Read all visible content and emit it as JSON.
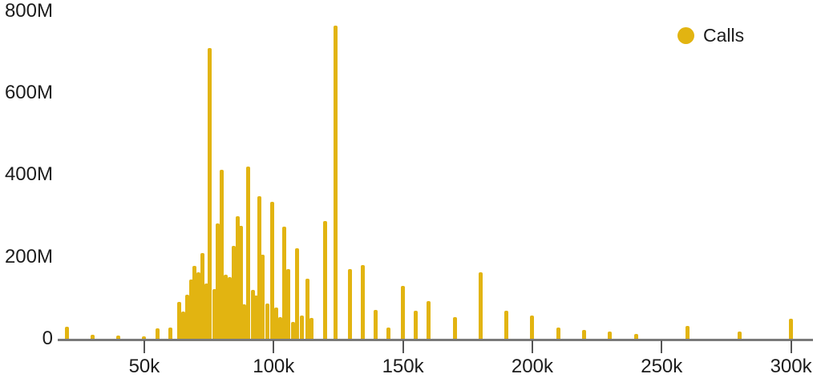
{
  "legend": {
    "items": [
      {
        "label": "Calls",
        "color": "#E2B411"
      }
    ]
  },
  "colors": {
    "bar": "#E2B411",
    "axis_line": "#7a7a7a",
    "tick": "#555555",
    "text": "#1c1c1c",
    "background": "#ffffff"
  },
  "chart_data": {
    "type": "bar",
    "title": "",
    "xlabel": "",
    "ylabel": "",
    "x_units": "k (thousands)",
    "y_units": "M (millions)",
    "grid": false,
    "legend_position": "top-right",
    "xlim": [
      15,
      310
    ],
    "ylim": [
      0,
      800
    ],
    "xticks": [
      {
        "value": 50,
        "label": "50k"
      },
      {
        "value": 100,
        "label": "100k"
      },
      {
        "value": 150,
        "label": "150k"
      },
      {
        "value": 200,
        "label": "200k"
      },
      {
        "value": 250,
        "label": "250k"
      },
      {
        "value": 300,
        "label": "300k"
      }
    ],
    "yticks": [
      {
        "value": 800,
        "label": "800M"
      },
      {
        "value": 600,
        "label": "600M"
      },
      {
        "value": 400,
        "label": "400M"
      },
      {
        "value": 200,
        "label": "200M"
      },
      {
        "value": 0,
        "label": "0"
      }
    ],
    "series": [
      {
        "name": "Calls",
        "color": "#E2B411",
        "points": [
          [
            20,
            30
          ],
          [
            30,
            10
          ],
          [
            40,
            8
          ],
          [
            50,
            5
          ],
          [
            55,
            25
          ],
          [
            60,
            28
          ],
          [
            63.5,
            90
          ],
          [
            65,
            67
          ],
          [
            66.5,
            108
          ],
          [
            68,
            145
          ],
          [
            69.5,
            178
          ],
          [
            71,
            162
          ],
          [
            72.5,
            210
          ],
          [
            74,
            135
          ],
          [
            75.3,
            710
          ],
          [
            77,
            122
          ],
          [
            78.5,
            281
          ],
          [
            80,
            412
          ],
          [
            81.5,
            157
          ],
          [
            83,
            150
          ],
          [
            84.5,
            226
          ],
          [
            86,
            299
          ],
          [
            87.5,
            275
          ],
          [
            88.7,
            85
          ],
          [
            90,
            420
          ],
          [
            92,
            120
          ],
          [
            93.2,
            105
          ],
          [
            94.5,
            348
          ],
          [
            95.8,
            205
          ],
          [
            97.5,
            87
          ],
          [
            99.5,
            334
          ],
          [
            101,
            77
          ],
          [
            102.5,
            53
          ],
          [
            104,
            273
          ],
          [
            105.5,
            171
          ],
          [
            107.5,
            42
          ],
          [
            109,
            221
          ],
          [
            111,
            57
          ],
          [
            113,
            146
          ],
          [
            114.5,
            51
          ],
          [
            119.8,
            287
          ],
          [
            124,
            765
          ],
          [
            129.5,
            170
          ],
          [
            134.5,
            180
          ],
          [
            139.5,
            70
          ],
          [
            144.5,
            28
          ],
          [
            150,
            130
          ],
          [
            155,
            68
          ],
          [
            160,
            92
          ],
          [
            170,
            52
          ],
          [
            180,
            162
          ],
          [
            190,
            68
          ],
          [
            200,
            57
          ],
          [
            210,
            28
          ],
          [
            220,
            22
          ],
          [
            230,
            17
          ],
          [
            240,
            12
          ],
          [
            260,
            32
          ],
          [
            280,
            18
          ],
          [
            300,
            48
          ]
        ]
      }
    ]
  }
}
